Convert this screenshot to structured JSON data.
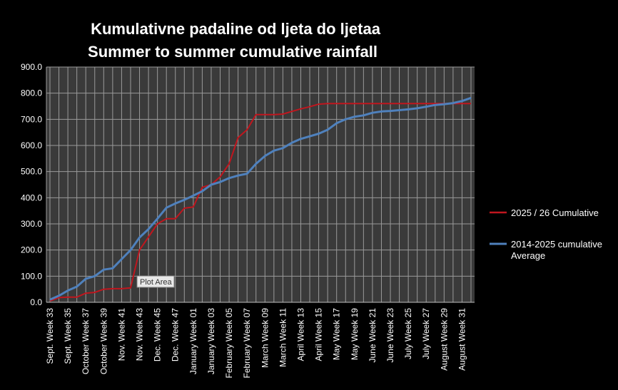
{
  "chart_data": {
    "type": "line",
    "title": [
      "Kumulativne padaline od ljeta do ljetaa",
      "Summer to summer cumulative rainfall"
    ],
    "xlabel": "",
    "ylabel": "",
    "ylim": [
      0,
      900
    ],
    "yticks": [
      "0.0",
      "100.0",
      "200.0",
      "300.0",
      "400.0",
      "500.0",
      "600.0",
      "700.0",
      "800.0",
      "900.0"
    ],
    "x_tick_labels": [
      "Sept. Week 33",
      "Sept. Week 35",
      "October Week 37",
      "October Week 39",
      "Nov. Week 41",
      "Nov. Week 43",
      "Dec. Week 45",
      "Dec. Week 47",
      "January Week 01",
      "January Week 03",
      "February Week 05",
      "February Week 07",
      "March Week 09",
      "March Week 11",
      "April Week 13",
      "April Week 15",
      "May Week 17",
      "May Week 19",
      "June Week 21",
      "June Week 23",
      "July Week 25",
      "July Week 27",
      "August Week 29",
      "August Week 31"
    ],
    "grid": true,
    "legend_position": "right",
    "series": [
      {
        "name": "2025 / 26 Cumulative",
        "color": "#c0161e",
        "values": [
          5,
          18,
          20,
          20,
          35,
          38,
          50,
          52,
          52,
          55,
          200,
          250,
          300,
          320,
          320,
          360,
          365,
          440,
          450,
          480,
          530,
          630,
          660,
          718,
          718,
          718,
          720,
          730,
          740,
          748,
          758,
          760,
          760,
          760,
          760,
          760,
          760,
          760,
          760,
          760,
          760,
          760,
          760,
          760,
          760,
          760,
          760,
          760
        ]
      },
      {
        "name": "2014-2025 cumulative Average",
        "color": "#4f81bd",
        "values": [
          10,
          25,
          45,
          60,
          90,
          100,
          125,
          130,
          165,
          200,
          248,
          280,
          320,
          362,
          378,
          392,
          408,
          425,
          450,
          460,
          475,
          485,
          492,
          530,
          560,
          580,
          590,
          610,
          625,
          635,
          645,
          660,
          685,
          700,
          710,
          715,
          725,
          730,
          732,
          735,
          738,
          742,
          748,
          755,
          758,
          762,
          770,
          782
        ]
      }
    ],
    "annotation": "Plot Area"
  },
  "colors": {
    "background": "#000000",
    "plot_area": "#3a3a3a",
    "gridline": "#9a9a9a",
    "text": "#ffffff"
  }
}
